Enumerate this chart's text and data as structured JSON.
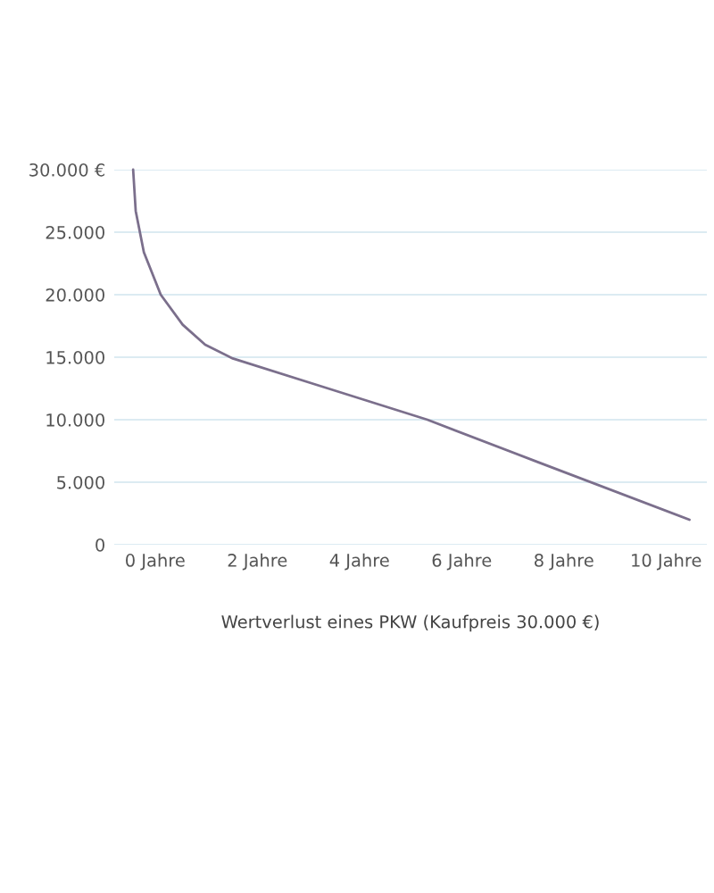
{
  "chart_data": {
    "type": "line",
    "xlabel": "Wertverlust eines PKW (Kaufpreis 30.000 €)",
    "x": [
      -0.43,
      -0.38,
      -0.22,
      0.11,
      0.54,
      0.98,
      1.52,
      3.15,
      5.33,
      7.5,
      10.46
    ],
    "series": [
      {
        "color": "#7b6f8c",
        "values": [
          30000,
          26700,
          23400,
          20000,
          17600,
          16000,
          14900,
          12800,
          10000,
          6600,
          2000
        ]
      }
    ],
    "xlim": [
      -0.8,
      10.8
    ],
    "xticks": [
      {
        "value": 0,
        "label": "0 Jahre"
      },
      {
        "value": 2,
        "label": "2 Jahre"
      },
      {
        "value": 4,
        "label": "4 Jahre"
      },
      {
        "value": 6,
        "label": "6 Jahre"
      },
      {
        "value": 8,
        "label": "8 Jahre"
      },
      {
        "value": 10,
        "label": "10 Jahre"
      }
    ],
    "ylim": [
      0,
      30000
    ],
    "yticks": [
      0,
      {
        "value": 5000,
        "label": "5.000"
      },
      {
        "value": 10000,
        "label": "10.000"
      },
      {
        "value": 15000,
        "label": "15.000"
      },
      {
        "value": 20000,
        "label": "20.000"
      },
      {
        "value": 25000,
        "label": "25.000"
      },
      {
        "value": 30000,
        "label": "30.000 €"
      }
    ],
    "grid": "y",
    "marker": "none",
    "line_style": "solid"
  }
}
